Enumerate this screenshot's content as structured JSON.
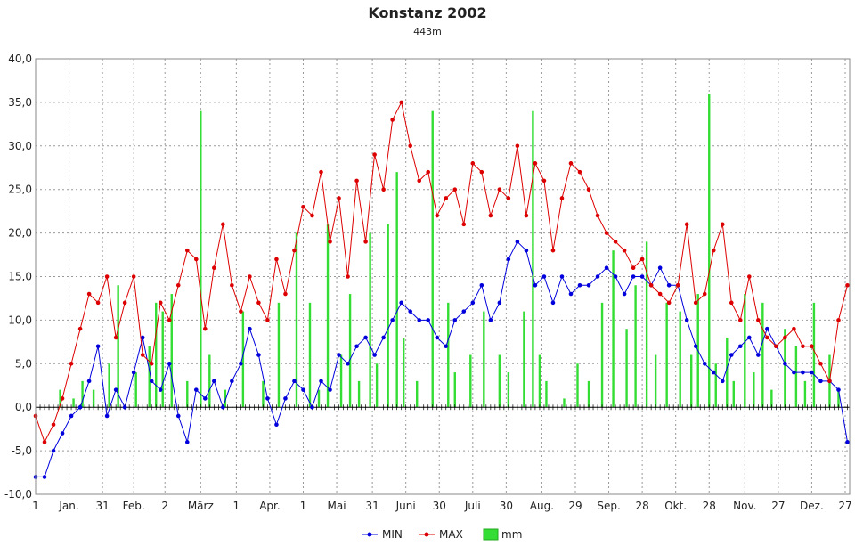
{
  "chart_data": {
    "type": "line",
    "title": "Konstanz 2002",
    "subtitle": "443m",
    "xlabel": "",
    "ylabel": "",
    "ylim": [
      -10,
      40
    ],
    "y_ticks": [
      "-10,0",
      "-5,0",
      "0,0",
      "5,0",
      "10,0",
      "15,0",
      "20,0",
      "25,0",
      "30,0",
      "35,0",
      "40,0"
    ],
    "x_ticks": [
      {
        "day": 1,
        "label": "1"
      },
      {
        "day": 16,
        "label": "Jan."
      },
      {
        "day": 31,
        "label": "31"
      },
      {
        "day": 45,
        "label": "Feb."
      },
      {
        "day": 59,
        "label": "2"
      },
      {
        "day": 75,
        "label": "März"
      },
      {
        "day": 91,
        "label": "1"
      },
      {
        "day": 106,
        "label": "Apr."
      },
      {
        "day": 121,
        "label": "1"
      },
      {
        "day": 136,
        "label": "Mai"
      },
      {
        "day": 152,
        "label": "31"
      },
      {
        "day": 167,
        "label": "Juni"
      },
      {
        "day": 182,
        "label": "30"
      },
      {
        "day": 197,
        "label": "Juli"
      },
      {
        "day": 212,
        "label": "30"
      },
      {
        "day": 228,
        "label": "Aug."
      },
      {
        "day": 243,
        "label": "29"
      },
      {
        "day": 258,
        "label": "Sep."
      },
      {
        "day": 273,
        "label": "28"
      },
      {
        "day": 288,
        "label": "Okt."
      },
      {
        "day": 303,
        "label": "28"
      },
      {
        "day": 319,
        "label": "Nov."
      },
      {
        "day": 334,
        "label": "27"
      },
      {
        "day": 349,
        "label": "Dez."
      },
      {
        "day": 364,
        "label": "27"
      }
    ],
    "x_range": [
      1,
      366
    ],
    "grid": true,
    "legend": "bottom-center",
    "colors": {
      "min": "#0000dd",
      "max": "#dd0000",
      "mm": "#33dd33",
      "mm_border": "#22aa22",
      "grid": "#999999"
    },
    "series": [
      {
        "name": "MIN",
        "x": [
          1,
          5,
          9,
          13,
          17,
          21,
          25,
          29,
          33,
          37,
          41,
          45,
          49,
          53,
          57,
          61,
          65,
          69,
          73,
          77,
          81,
          85,
          89,
          93,
          97,
          101,
          105,
          109,
          113,
          117,
          121,
          125,
          129,
          133,
          137,
          141,
          145,
          149,
          153,
          157,
          161,
          165,
          169,
          173,
          177,
          181,
          185,
          189,
          193,
          197,
          201,
          205,
          209,
          213,
          217,
          221,
          225,
          229,
          233,
          237,
          241,
          245,
          249,
          253,
          257,
          261,
          265,
          269,
          273,
          277,
          281,
          285,
          289,
          293,
          297,
          301,
          305,
          309,
          313,
          317,
          321,
          325,
          329,
          333,
          337,
          341,
          345,
          349,
          353,
          357,
          361,
          365
        ],
        "y": [
          -8,
          -8,
          -5,
          -3,
          -1,
          0,
          3,
          7,
          -1,
          2,
          0,
          4,
          8,
          3,
          2,
          5,
          -1,
          -4,
          2,
          1,
          3,
          0,
          3,
          5,
          9,
          6,
          1,
          -2,
          1,
          3,
          2,
          0,
          3,
          2,
          6,
          5,
          7,
          8,
          6,
          8,
          10,
          12,
          11,
          10,
          10,
          8,
          7,
          10,
          11,
          12,
          14,
          10,
          12,
          17,
          19,
          18,
          14,
          15,
          12,
          15,
          13,
          14,
          14,
          15,
          16,
          15,
          13,
          15,
          15,
          14,
          16,
          14,
          14,
          10,
          7,
          5,
          4,
          3,
          6,
          7,
          8,
          6,
          9,
          7,
          5,
          4,
          4,
          4,
          3,
          3,
          2,
          -4
        ]
      },
      {
        "name": "MAX",
        "x": [
          1,
          5,
          9,
          13,
          17,
          21,
          25,
          29,
          33,
          37,
          41,
          45,
          49,
          53,
          57,
          61,
          65,
          69,
          73,
          77,
          81,
          85,
          89,
          93,
          97,
          101,
          105,
          109,
          113,
          117,
          121,
          125,
          129,
          133,
          137,
          141,
          145,
          149,
          153,
          157,
          161,
          165,
          169,
          173,
          177,
          181,
          185,
          189,
          193,
          197,
          201,
          205,
          209,
          213,
          217,
          221,
          225,
          229,
          233,
          237,
          241,
          245,
          249,
          253,
          257,
          261,
          265,
          269,
          273,
          277,
          281,
          285,
          289,
          293,
          297,
          301,
          305,
          309,
          313,
          317,
          321,
          325,
          329,
          333,
          337,
          341,
          345,
          349,
          353,
          357,
          361,
          365
        ],
        "y": [
          -1,
          -4,
          -2,
          1,
          5,
          9,
          13,
          12,
          15,
          8,
          12,
          15,
          6,
          5,
          12,
          10,
          14,
          18,
          17,
          9,
          16,
          21,
          14,
          11,
          15,
          12,
          10,
          17,
          13,
          18,
          23,
          22,
          27,
          19,
          24,
          15,
          26,
          19,
          29,
          25,
          33,
          35,
          30,
          26,
          27,
          22,
          24,
          25,
          21,
          28,
          27,
          22,
          25,
          24,
          30,
          22,
          28,
          26,
          18,
          24,
          28,
          27,
          25,
          22,
          20,
          19,
          18,
          16,
          17,
          14,
          13,
          12,
          14,
          21,
          12,
          13,
          18,
          21,
          12,
          10,
          15,
          10,
          8,
          7,
          8,
          9,
          7,
          7,
          5,
          3,
          10,
          14
        ]
      },
      {
        "name": "mm",
        "x": [
          12,
          18,
          22,
          27,
          34,
          38,
          46,
          52,
          55,
          58,
          62,
          69,
          75,
          79,
          86,
          94,
          103,
          110,
          118,
          124,
          128,
          132,
          138,
          142,
          146,
          151,
          154,
          159,
          163,
          166,
          172,
          179,
          186,
          189,
          196,
          202,
          209,
          213,
          220,
          224,
          227,
          230,
          238,
          244,
          249,
          255,
          260,
          266,
          270,
          275,
          279,
          284,
          290,
          295,
          298,
          303,
          306,
          311,
          314,
          319,
          323,
          327,
          331,
          337,
          342,
          346,
          350,
          357,
          361
        ],
        "y": [
          2,
          1,
          3,
          2,
          5,
          14,
          4,
          7,
          12,
          11,
          13,
          3,
          34,
          6,
          2,
          11,
          3,
          12,
          20,
          12,
          2,
          21,
          6,
          13,
          3,
          20,
          5,
          21,
          27,
          8,
          3,
          34,
          12,
          4,
          6,
          11,
          6,
          4,
          11,
          34,
          6,
          3,
          1,
          5,
          3,
          12,
          18,
          9,
          14,
          19,
          6,
          12,
          11,
          6,
          13,
          36,
          5,
          8,
          3,
          13,
          4,
          12,
          2,
          9,
          7,
          3,
          12,
          6,
          2
        ]
      }
    ]
  }
}
